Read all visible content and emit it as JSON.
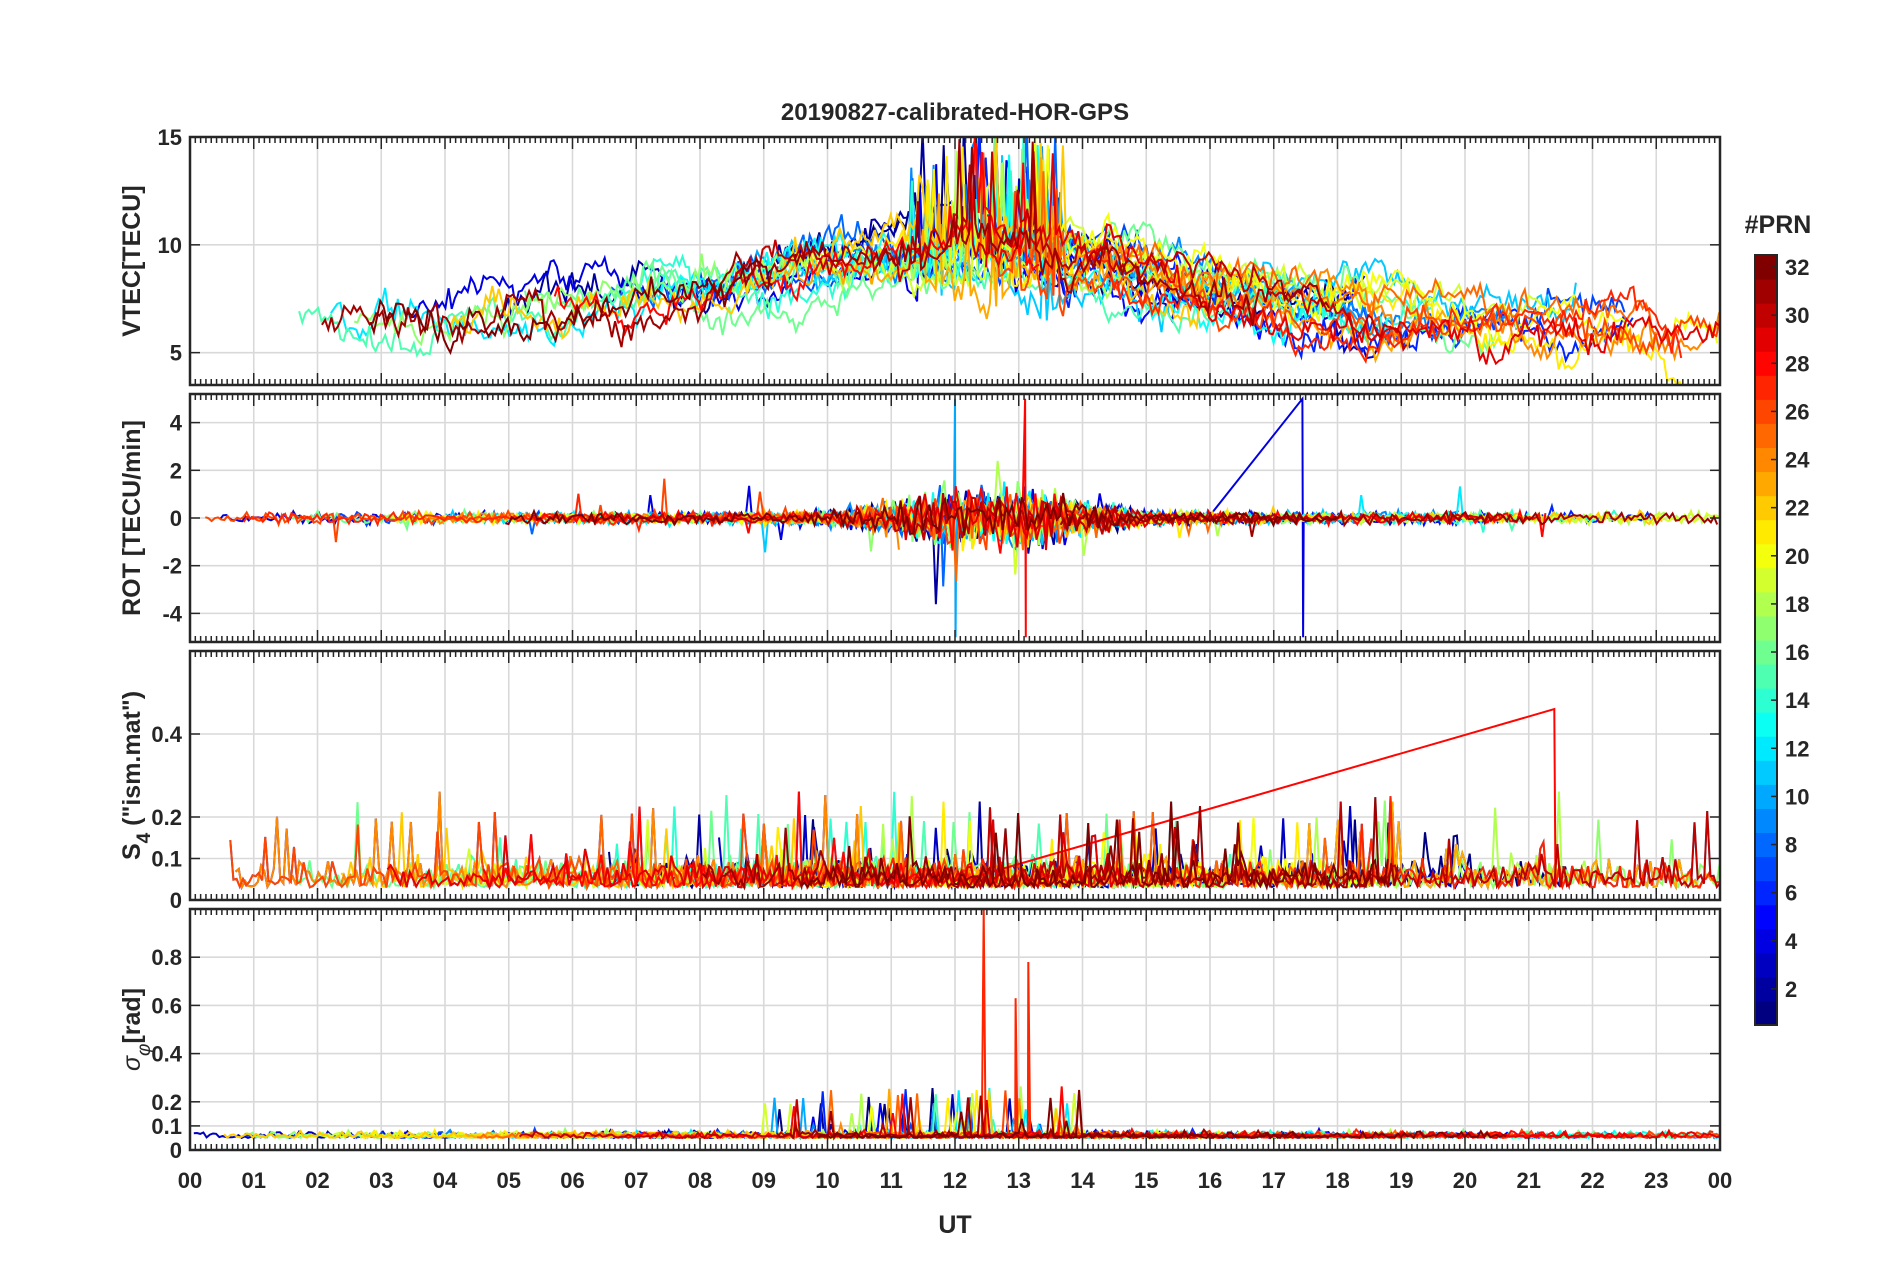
{
  "chart_data": {
    "type": "line",
    "title": "20190827-calibrated-HOR-GPS",
    "xlabel": "UT",
    "x_range_hours": [
      0,
      24
    ],
    "x_tick_labels": [
      "00",
      "01",
      "02",
      "03",
      "04",
      "05",
      "06",
      "07",
      "08",
      "09",
      "10",
      "11",
      "12",
      "13",
      "14",
      "15",
      "16",
      "17",
      "18",
      "19",
      "20",
      "21",
      "22",
      "23",
      "00"
    ],
    "grid": true,
    "colormap": "jet",
    "colorbar": {
      "label": "#PRN",
      "range": [
        1,
        32
      ],
      "tick_values": [
        2,
        4,
        6,
        8,
        10,
        12,
        14,
        16,
        18,
        20,
        22,
        24,
        26,
        28,
        30,
        32
      ],
      "tick_labels": [
        "2",
        "4",
        "6",
        "8",
        "10",
        "12",
        "14",
        "16",
        "18",
        "20",
        "22",
        "24",
        "26",
        "28",
        "30",
        "32"
      ]
    },
    "panels": [
      {
        "id": "vtec",
        "ylabel": "VTEC[TECU]",
        "ylim": [
          3.5,
          15
        ],
        "y_ticks": [
          5,
          10,
          15
        ],
        "y_tick_labels": [
          "5",
          "10",
          "15"
        ],
        "description_values": {
          "baseline": 6.5,
          "daytime_max": 9.5,
          "peak_hour": 12.5,
          "peak_value": 14.5
        }
      },
      {
        "id": "rot",
        "ylabel": "ROT [TECU/min]",
        "ylim": [
          -5.2,
          5.2
        ],
        "y_ticks": [
          -4,
          -2,
          0,
          2,
          4
        ],
        "y_tick_labels": [
          "-4",
          "-2",
          "0",
          "2",
          "4"
        ],
        "description_values": {
          "spike_hour_1": 12.0,
          "spike_hour_2": 13.1,
          "spike_hour_3": 17.45,
          "spike_amplitude": 5.0
        }
      },
      {
        "id": "s4",
        "ylabel": "S4 (\"ism.mat\")",
        "ylabel_parts": {
          "symbol": "S",
          "subscript": "4",
          "rest": " (\"ism.mat\")"
        },
        "ylim": [
          0,
          0.6
        ],
        "y_ticks": [
          0,
          0.1,
          0.2,
          0.4
        ],
        "y_tick_labels": [
          "0",
          "0.1",
          "0.2",
          "0.4"
        ],
        "description_values": {
          "baseline": 0.03,
          "max_value": 0.46,
          "max_hour": 21.4
        }
      },
      {
        "id": "sigma_phi",
        "ylabel": "σφ[rad]",
        "ylabel_parts": {
          "symbol": "σ",
          "subscript": "φ",
          "rest": "[rad]"
        },
        "ylim": [
          0,
          1.0
        ],
        "y_ticks": [
          0,
          0.1,
          0.2,
          0.4,
          0.6,
          0.8
        ],
        "y_tick_labels": [
          "0",
          "0.1",
          "0.2",
          "0.4",
          "0.6",
          "0.8"
        ],
        "description_values": {
          "baseline": 0.05,
          "peak_hour_1": 12.45,
          "peak_value_1": 1.0,
          "peak_hour_2": 12.95,
          "peak_value_2": 0.63,
          "peak_hour_3": 13.15,
          "peak_value_3": 0.78
        }
      }
    ]
  }
}
